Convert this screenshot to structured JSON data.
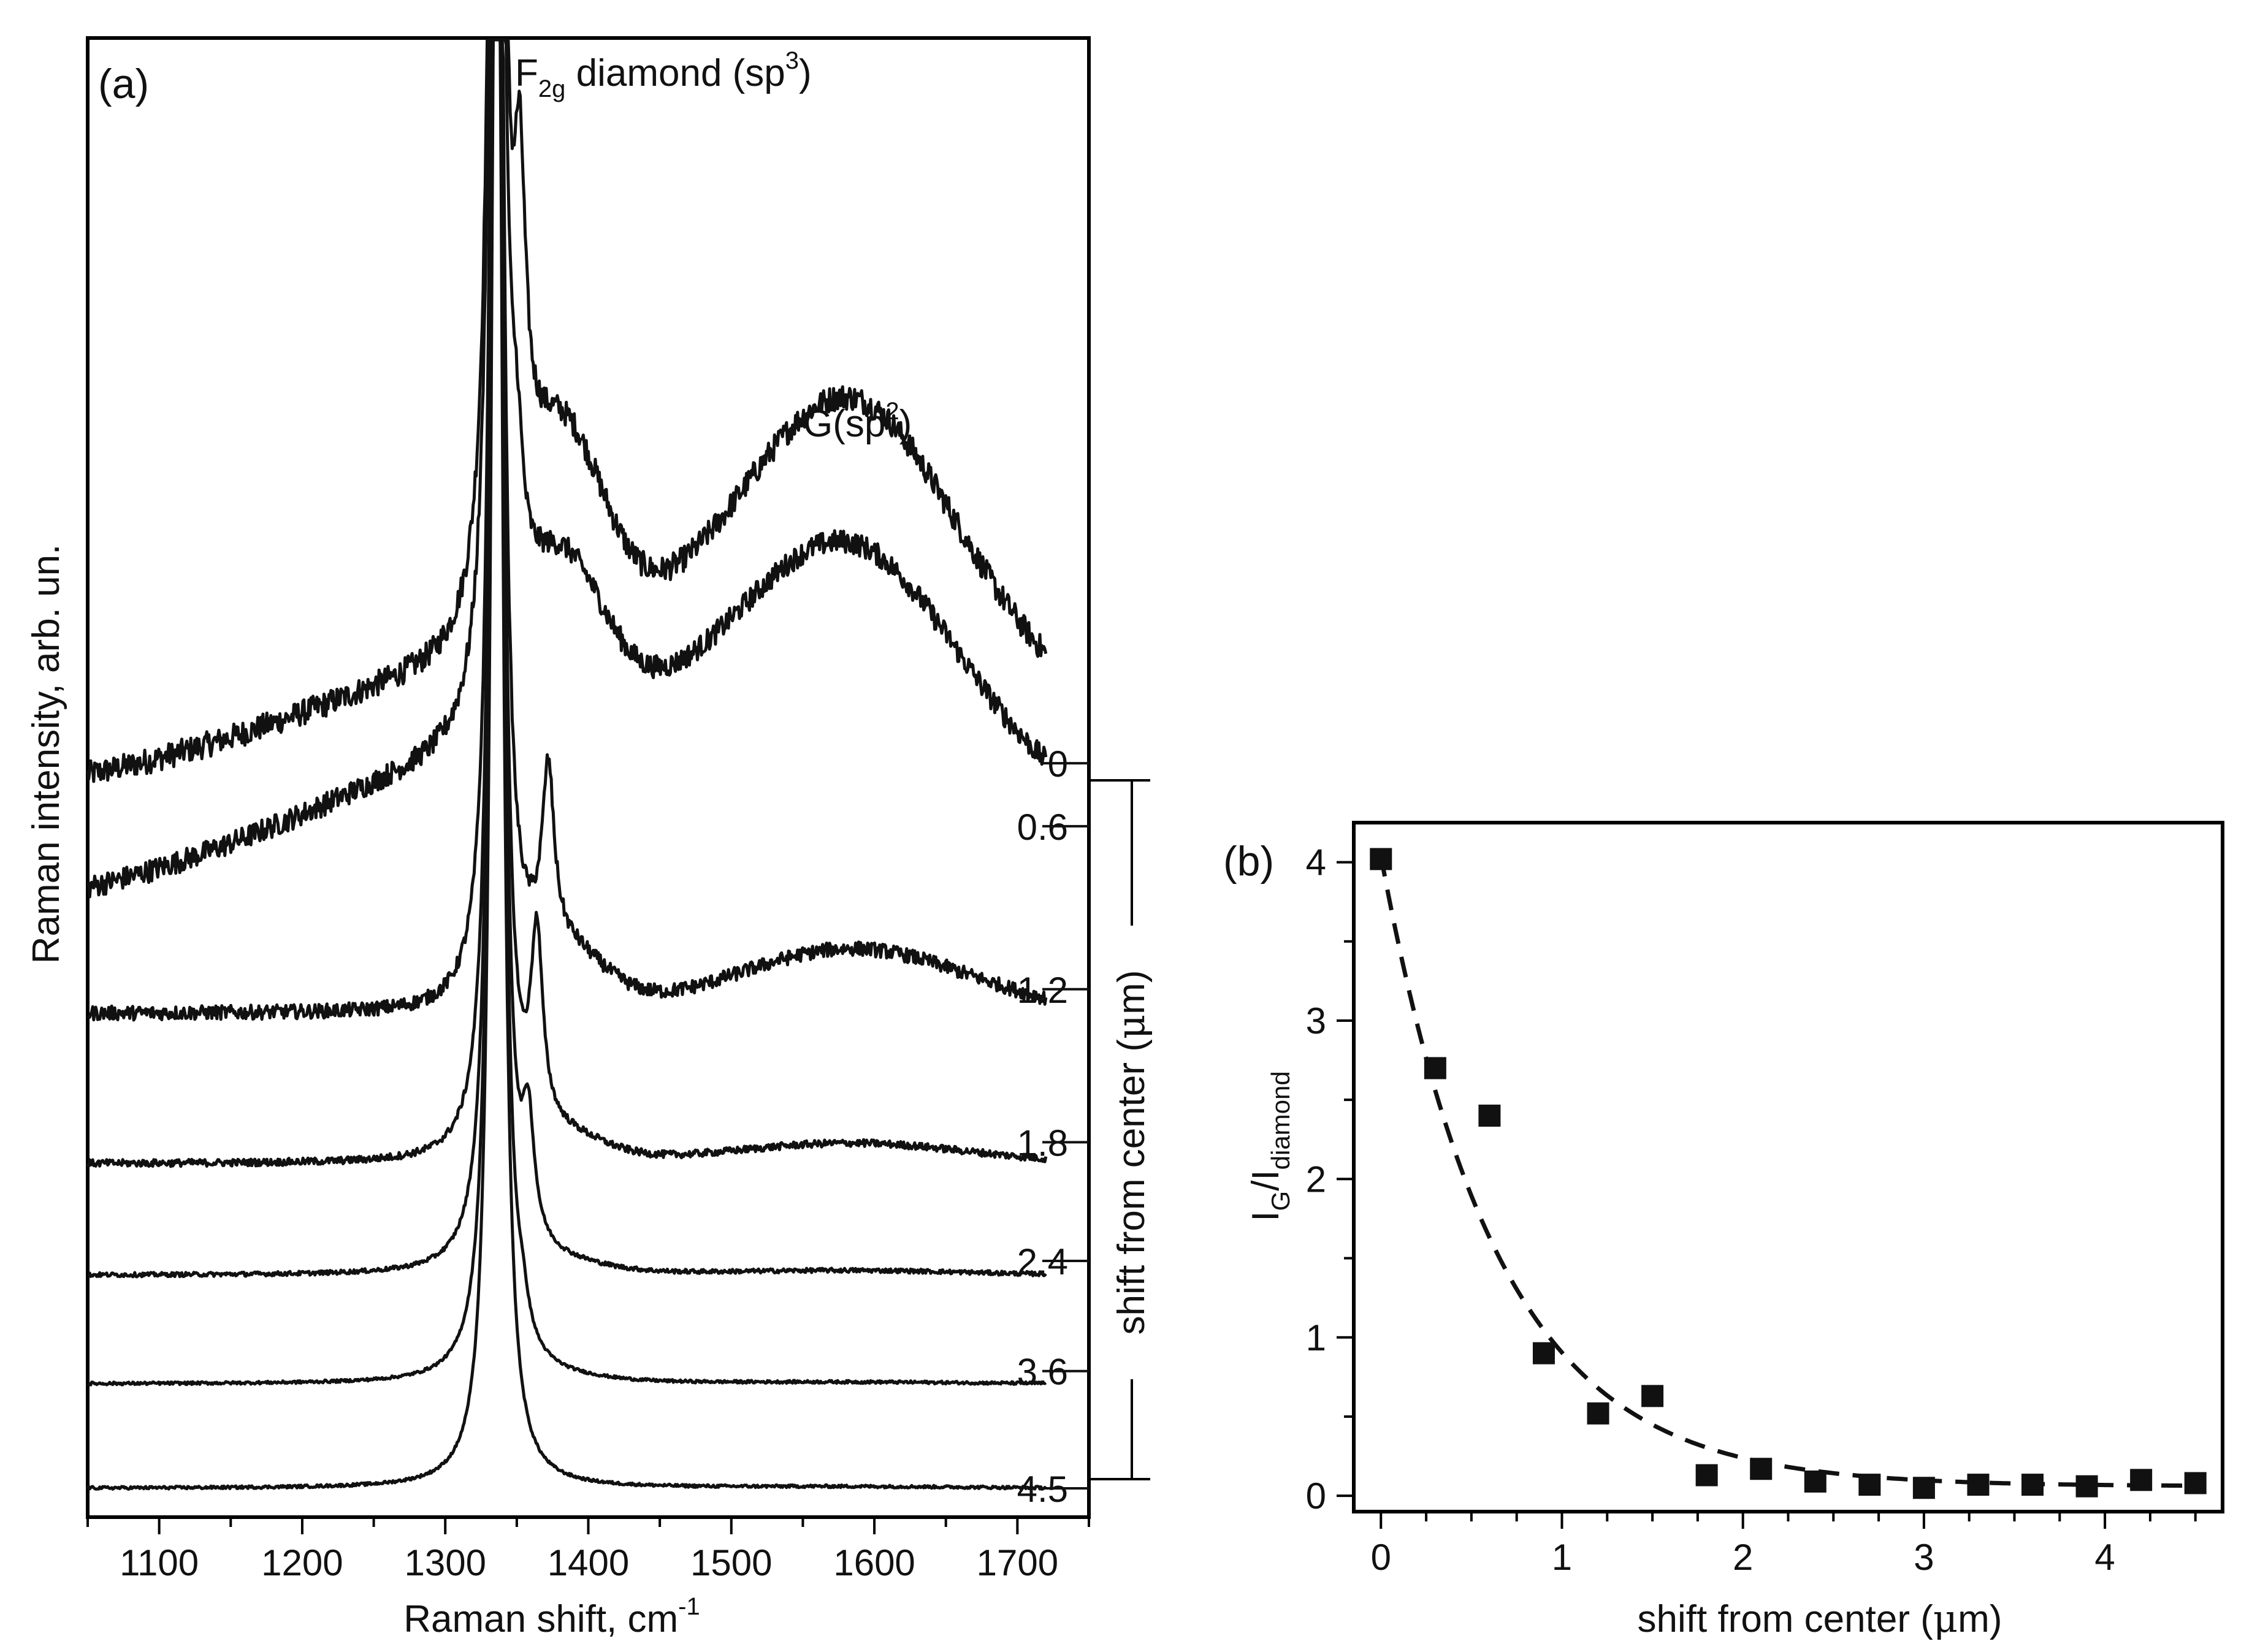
{
  "chart_data": [
    {
      "panel_label": "(a)",
      "type": "line",
      "xlabel": "Raman shift, cm",
      "xlabel_sup": "-1",
      "ylabel": "Raman intensity, arb. un.",
      "xlim": [
        1050,
        1750
      ],
      "ylim": [
        0,
        100
      ],
      "xticks": [
        1100,
        1200,
        1300,
        1400,
        1500,
        1600,
        1700
      ],
      "annotations": {
        "diamond_peak": {
          "main": "F",
          "sub": "2g",
          "rest": " diamond (sp",
          "sup": "3",
          "end": ")",
          "x": 1340
        },
        "g_peak": {
          "main": "G(sp",
          "sup": "2",
          "end": ")",
          "x": 1590
        }
      },
      "bracket_label": "shift from center (",
      "bracket_label_mu": "μ",
      "bracket_label_end": "m)",
      "series": [
        {
          "name": "0",
          "baseline": 50.2,
          "g_amp": 17.5,
          "g_width": 72,
          "dpk2": 1352,
          "dpk2_amp": 20,
          "shoulder_amp": 14,
          "noise": 0.9,
          "label_y": 51.0
        },
        {
          "name": "0.6",
          "baseline": 42.3,
          "g_amp": 13.5,
          "g_width": 72,
          "dpk2": 1350,
          "dpk2_amp": 8,
          "shoulder_amp": 11,
          "noise": 0.8,
          "label_y": 46.6
        },
        {
          "name": "1.2",
          "baseline": 33.5,
          "g_amp": 4.5,
          "g_width": 80,
          "dpk2": 1372,
          "dpk2_amp": 12,
          "shoulder_amp": 4,
          "noise": 0.5,
          "label_y": 35.2
        },
        {
          "name": "1.8",
          "baseline": 23.0,
          "g_amp": 1.4,
          "g_width": 80,
          "dpk2": 1364,
          "dpk2_amp": 13,
          "shoulder_amp": 1.5,
          "noise": 0.25,
          "label_y": 24.5
        },
        {
          "name": "2.4",
          "baseline": 15.2,
          "g_amp": 0.3,
          "g_width": 80,
          "dpk2": 1358,
          "dpk2_amp": 8,
          "shoulder_amp": 0.5,
          "noise": 0.15,
          "label_y": 16.2
        },
        {
          "name": "3.6",
          "baseline": 7.6,
          "g_amp": 0.1,
          "g_width": 80,
          "dpk2": 1354,
          "dpk2_amp": 2,
          "shoulder_amp": 0.2,
          "noise": 0.1,
          "label_y": 8.5
        },
        {
          "name": "4.5",
          "baseline": 0.3,
          "g_amp": 0.1,
          "g_width": 80,
          "dpk2": 1352,
          "dpk2_amp": 0,
          "shoulder_amp": 0,
          "noise": 0.1,
          "label_y": 0.3
        }
      ]
    },
    {
      "panel_label": "(b)",
      "type": "scatter",
      "xlabel": "shift from center (",
      "xlabel_mu": "μ",
      "xlabel_end": "m)",
      "ylabel_main": "I",
      "ylabel_sub1": "G",
      "ylabel_slash": "/I",
      "ylabel_sub2": "diamond",
      "xlim": [
        -0.15,
        4.65
      ],
      "ylim": [
        -0.1,
        4.25
      ],
      "xticks": [
        0,
        1,
        2,
        3,
        4
      ],
      "yticks": [
        0,
        1,
        2,
        3,
        4
      ],
      "x": [
        0,
        0.3,
        0.6,
        0.9,
        1.2,
        1.5,
        1.8,
        2.1,
        2.4,
        2.7,
        3.0,
        3.3,
        3.6,
        3.9,
        4.2,
        4.5
      ],
      "y": [
        4.02,
        2.7,
        2.4,
        0.9,
        0.52,
        0.63,
        0.13,
        0.17,
        0.09,
        0.07,
        0.05,
        0.07,
        0.07,
        0.06,
        0.1,
        0.08
      ],
      "fit": {
        "style": "dashed",
        "A": 3.98,
        "k": 1.55,
        "c": 0.06
      }
    }
  ]
}
